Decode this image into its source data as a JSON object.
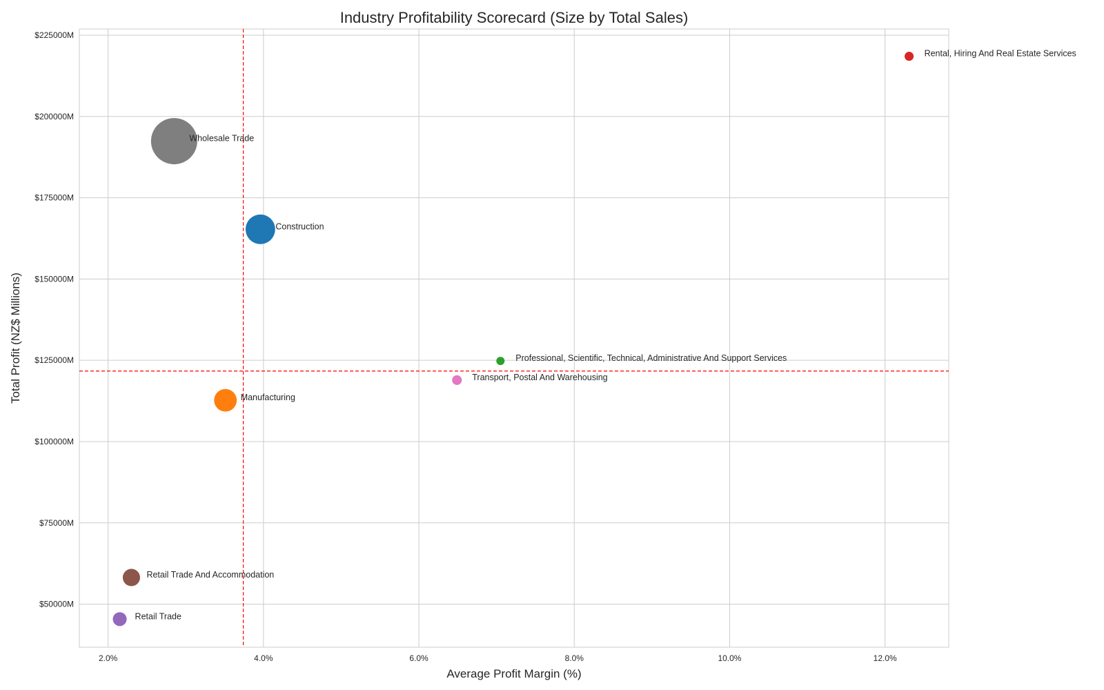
{
  "chart_data": {
    "type": "scatter",
    "title": "Industry Profitability Scorecard (Size by Total Sales)",
    "xlabel": "Average Profit Margin (%)",
    "ylabel": "Total Profit (NZ$ Millions)",
    "xlim": [
      1.63,
      12.82
    ],
    "ylim": [
      36760,
      226900
    ],
    "x_ticks": [
      2,
      4,
      6,
      8,
      10,
      12
    ],
    "x_tick_labels": [
      "2.0%",
      "4.0%",
      "6.0%",
      "8.0%",
      "10.0%",
      "12.0%"
    ],
    "y_ticks": [
      50000,
      75000,
      100000,
      125000,
      150000,
      175000,
      200000,
      225000
    ],
    "y_tick_labels": [
      "$50000M",
      "$75000M",
      "$100000M",
      "$125000M",
      "$150000M",
      "$175000M",
      "$200000M",
      "$225000M"
    ],
    "grid": true,
    "size_encoding": "Total Sales (relative bubble area)",
    "points": [
      {
        "label": "Wholesale Trade",
        "x": 2.85,
        "y": 192400,
        "relative_size": 1.0,
        "color": "#7f7f7f"
      },
      {
        "label": "Construction",
        "x": 3.96,
        "y": 165300,
        "relative_size": 0.41,
        "color": "#1f77b4"
      },
      {
        "label": "Rental, Hiring And Real Estate Services",
        "x": 12.31,
        "y": 218500,
        "relative_size": 0.038,
        "color": "#d62728"
      },
      {
        "label": "Professional, Scientific, Technical, Administrative And Support Services",
        "x": 7.05,
        "y": 124800,
        "relative_size": 0.032,
        "color": "#2ca02c"
      },
      {
        "label": "Transport, Postal And Warehousing",
        "x": 6.49,
        "y": 118900,
        "relative_size": 0.044,
        "color": "#e377c2"
      },
      {
        "label": "Manufacturing",
        "x": 3.51,
        "y": 112700,
        "relative_size": 0.24,
        "color": "#ff7f0e"
      },
      {
        "label": "Retail Trade And Accommodation",
        "x": 2.3,
        "y": 58200,
        "relative_size": 0.14,
        "color": "#8c564b"
      },
      {
        "label": "Retail Trade",
        "x": 2.15,
        "y": 45400,
        "relative_size": 0.09,
        "color": "#9467bd"
      }
    ],
    "reference_lines": {
      "mean_x": 3.74,
      "mean_y": 121700,
      "color": "#ff0000",
      "style": "dashed"
    }
  }
}
